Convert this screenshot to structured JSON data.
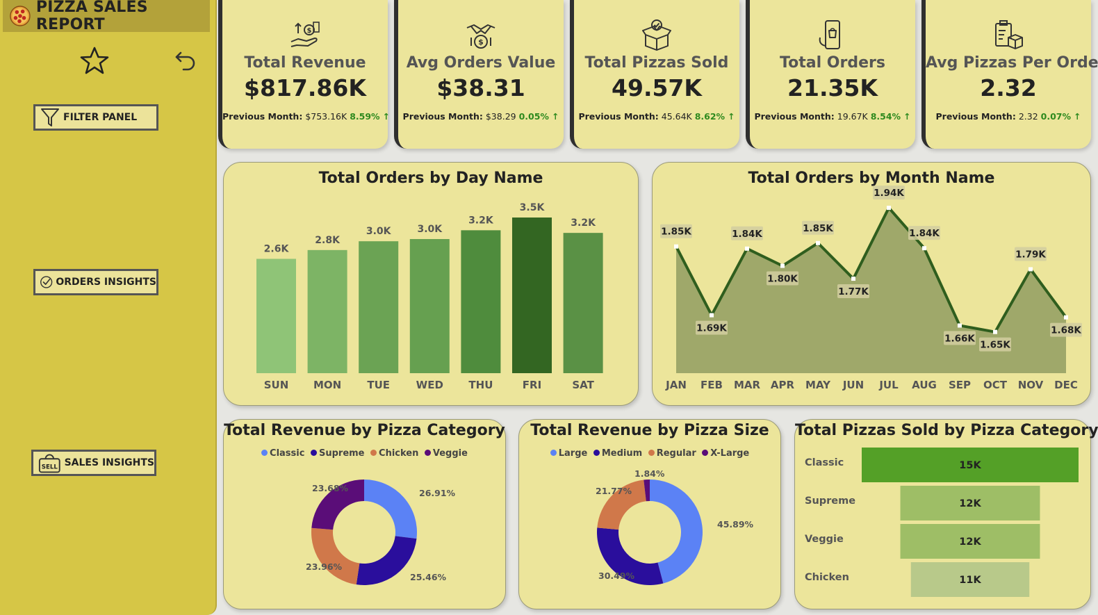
{
  "app": {
    "title": "PIZZA SALES REPORT"
  },
  "nav": {
    "filter_label": "FILTER PANEL",
    "orders_label": "ORDERS INSIGHTS",
    "sales_label": "SALES INSIGHTS"
  },
  "kpis": [
    {
      "title": "Total Revenue",
      "value": "$817.86K",
      "prev_label": "Previous Month:",
      "prev_value": "$753.16K",
      "pct": "8.59%",
      "icon": "money-hand-icon"
    },
    {
      "title": "Avg Orders Value",
      "value": "$38.31",
      "prev_label": "Previous Month:",
      "prev_value": "$38.29",
      "pct": "0.05%",
      "icon": "handshake-money-icon"
    },
    {
      "title": "Total Pizzas Sold",
      "value": "49.57K",
      "prev_label": "Previous Month:",
      "prev_value": "45.64K",
      "pct": "8.62%",
      "icon": "box-check-icon"
    },
    {
      "title": "Total Orders",
      "value": "21.35K",
      "prev_label": "Previous Month:",
      "prev_value": "19.67K",
      "pct": "8.54%",
      "icon": "phone-order-icon"
    },
    {
      "title": "Avg Pizzas Per Order",
      "value": "2.32",
      "prev_label": "Previous Month:",
      "prev_value": "2.32",
      "pct": "0.07%",
      "icon": "clipboard-box-icon"
    }
  ],
  "colors": {
    "panel_bg": "#ece59b",
    "sidebar": "#d6c646",
    "classic": "#5b82f5",
    "supreme": "#2a0e9c",
    "chicken": "#d0784a",
    "veggie": "#5a0d78",
    "xlarge": "#5a0d78",
    "up": "#2e8a1e"
  },
  "chart_data": [
    {
      "type": "bar",
      "title": "Total Orders by Day Name",
      "categories": [
        "SUN",
        "MON",
        "TUE",
        "WED",
        "THU",
        "FRI",
        "SAT"
      ],
      "values": [
        2600,
        2800,
        3000,
        3050,
        3250,
        3540,
        3190
      ],
      "labels": [
        "2.6K",
        "2.8K",
        "3.0K",
        "3.0K",
        "3.2K",
        "3.5K",
        "3.2K"
      ],
      "colors": [
        "#8fc477",
        "#7db465",
        "#6ba354",
        "#66a050",
        "#4f8c3d",
        "#336622",
        "#5a9145"
      ],
      "ylim": [
        0,
        3540
      ]
    },
    {
      "type": "area",
      "title": "Total Orders by Month Name",
      "categories": [
        "JAN",
        "FEB",
        "MAR",
        "APR",
        "MAY",
        "JUN",
        "JUL",
        "AUG",
        "SEP",
        "OCT",
        "NOV",
        "DEC"
      ],
      "values": [
        1845,
        1685,
        1840,
        1800,
        1853,
        1770,
        1935,
        1841,
        1661,
        1646,
        1792,
        1680
      ],
      "labels": [
        "1.85K",
        "1.69K",
        "1.84K",
        "1.80K",
        "1.85K",
        "1.77K",
        "1.94K",
        "1.84K",
        "1.66K",
        "1.65K",
        "1.79K",
        "1.68K"
      ],
      "ylim": [
        1550,
        1940
      ]
    },
    {
      "type": "pie",
      "title": "Total Revenue by Pizza Category",
      "categories": [
        "Classic",
        "Supreme",
        "Chicken",
        "Veggie"
      ],
      "values": [
        26.91,
        25.46,
        23.96,
        23.68
      ],
      "labels": [
        "26.91%",
        "25.46%",
        "23.96%",
        "23.68%"
      ],
      "colors": [
        "#5b82f5",
        "#2a0e9c",
        "#d0784a",
        "#5a0d78"
      ]
    },
    {
      "type": "pie",
      "title": "Total Revenue by Pizza Size",
      "categories": [
        "Large",
        "Medium",
        "Regular",
        "X-Large"
      ],
      "values": [
        45.89,
        30.49,
        21.77,
        1.84
      ],
      "labels": [
        "45.89%",
        "30.49%",
        "21.77%",
        "1.84%"
      ],
      "colors": [
        "#5b82f5",
        "#2a0e9c",
        "#d0784a",
        "#5a0d78"
      ]
    },
    {
      "type": "bar",
      "orientation": "horizontal",
      "title": "Total Pizzas Sold by Pizza Category",
      "categories": [
        "Classic",
        "Supreme",
        "Veggie",
        "Chicken"
      ],
      "values": [
        15000,
        12000,
        12000,
        11000
      ],
      "labels": [
        "15K",
        "12K",
        "12K",
        "11K"
      ],
      "colors": [
        "#54a027",
        "#9ebe66",
        "#9ebe66",
        "#b8c98a"
      ]
    }
  ]
}
